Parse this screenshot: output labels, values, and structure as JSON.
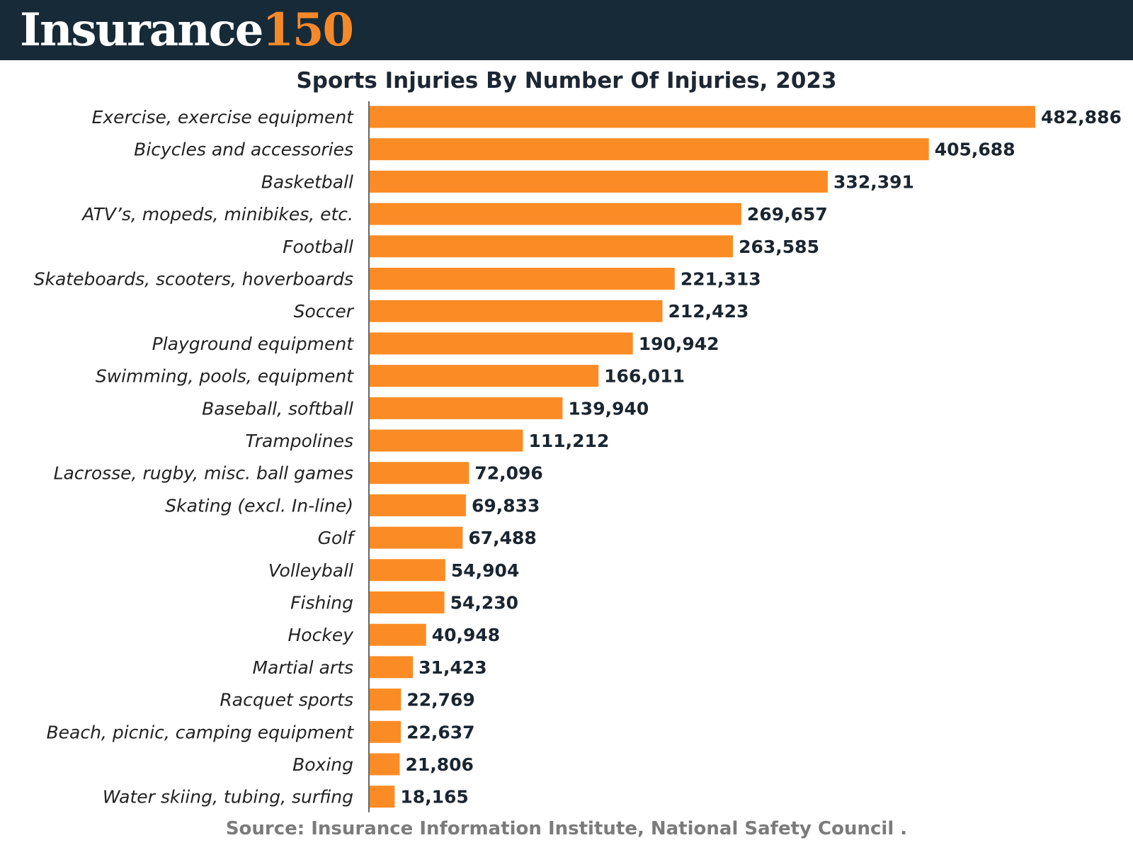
{
  "header": {
    "brand_word": "Insurance",
    "brand_number": "150",
    "brand_color": "#f5892a",
    "background_color": "#172a38"
  },
  "chart_data": {
    "type": "bar",
    "orientation": "horizontal",
    "title": "Sports Injuries By Number Of Injuries, 2023",
    "bar_color": "#fb8c25",
    "xlim": [
      0,
      482886
    ],
    "grid": false,
    "categories": [
      "Exercise, exercise equipment",
      "Bicycles and accessories",
      "Basketball",
      "ATV’s, mopeds, minibikes, etc.",
      "Football",
      "Skateboards, scooters, hoverboards",
      "Soccer",
      "Playground equipment",
      "Swimming, pools, equipment",
      "Baseball, softball",
      "Trampolines",
      "Lacrosse, rugby, misc. ball games",
      "Skating (excl. In-line)",
      "Golf",
      "Volleyball",
      "Fishing",
      "Hockey",
      "Martial arts",
      "Racquet sports",
      "Beach, picnic, camping equipment",
      "Boxing",
      "Water skiing, tubing, surfing"
    ],
    "values": [
      482886,
      405688,
      332391,
      269657,
      263585,
      221313,
      212423,
      190942,
      166011,
      139940,
      111212,
      72096,
      69833,
      67488,
      54904,
      54230,
      40948,
      31423,
      22769,
      22637,
      21806,
      18165
    ],
    "data_labels": [
      "482,886",
      "405,688",
      "332,391",
      "269,657",
      "263,585",
      "221,313",
      "212,423",
      "190,942",
      "166,011",
      "139,940",
      "111,212",
      "72,096",
      "69,833",
      "67,488",
      "54,904",
      "54,230",
      "40,948",
      "31,423",
      "22,769",
      "22,637",
      "21,806",
      "18,165"
    ]
  },
  "footer": {
    "source": "Source: Insurance Information Institute, National Safety Council ."
  }
}
